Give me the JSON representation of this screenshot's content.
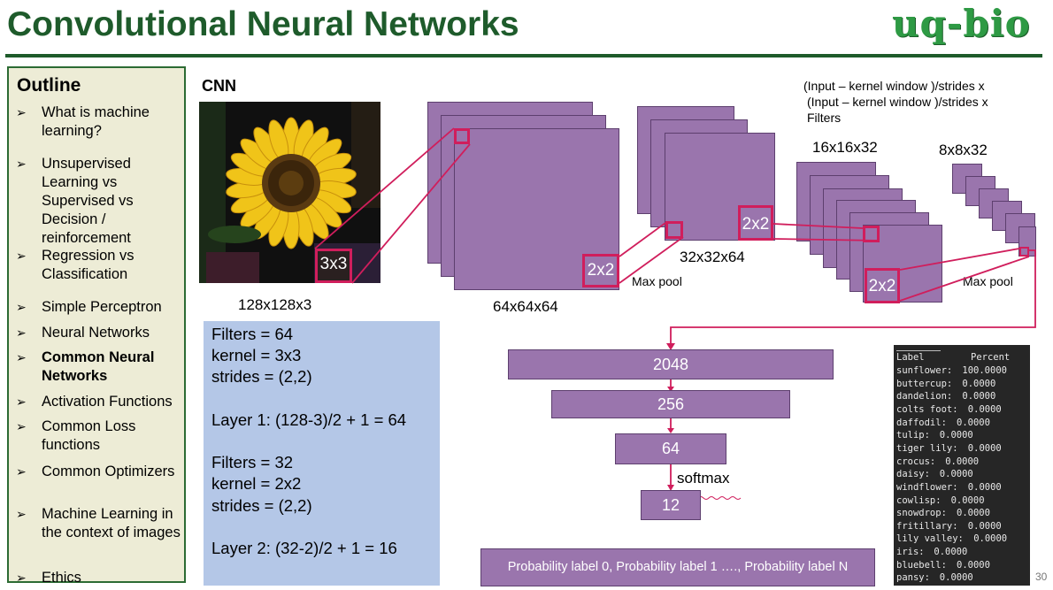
{
  "slide": {
    "title": "Convolutional Neural Networks",
    "logo_text": "uq-bio",
    "page_number": "30"
  },
  "outline": {
    "heading": "Outline",
    "items": [
      {
        "label": "What is machine learning?",
        "bold": false
      },
      {
        "label": "Unsupervised Learning vs Supervised vs Decision / reinforcement",
        "bold": false
      },
      {
        "label": "Regression vs Classification",
        "bold": false
      },
      {
        "label": "Simple Perceptron",
        "bold": false
      },
      {
        "label": "Neural Networks",
        "bold": false
      },
      {
        "label": "Common Neural Networks",
        "bold": true
      },
      {
        "label": "Activation Functions",
        "bold": false
      },
      {
        "label": "Common Loss functions",
        "bold": false
      },
      {
        "label": "Common Optimizers",
        "bold": false
      },
      {
        "label": "Machine Learning in the context of images",
        "bold": false
      },
      {
        "label": "Ethics",
        "bold": false
      }
    ]
  },
  "diagram": {
    "heading": "CNN",
    "formula_line1": "(Input – kernel window )/strides  x",
    "formula_line2": "(Input – kernel window )/strides x",
    "formula_line3": "Filters",
    "input_dims": "128x128x3",
    "kernel1": "3x3",
    "conv1_dims": "64x64x64",
    "pool1_kernel": "2x2",
    "pool1_label": "Max pool",
    "conv2_dims": "32x32x64",
    "conv2_kernel": "2x2",
    "conv3_dims": "16x16x32",
    "pool2_kernel": "2x2",
    "pool2_label": "Max pool",
    "conv4_dims": "8x8x32",
    "dense1": "2048",
    "dense2": "256",
    "dense3": "64",
    "activation": "softmax",
    "output": "12",
    "probabilities": "Probability label 0, Probability label 1 …., Probability label N"
  },
  "params": {
    "lines": [
      "Filters = 64",
      "kernel = 3x3",
      "strides =  (2,2)",
      "",
      "Layer 1: (128-3)/2 + 1 = 64",
      "",
      "Filters = 32",
      "kernel = 2x2",
      "strides =  (2,2)",
      "",
      "Layer 2: (32-2)/2 + 1 = 16"
    ]
  },
  "results": {
    "header_label": "Label",
    "header_percent": "Percent",
    "rows": [
      {
        "label": "sunflower:",
        "value": "100.0000"
      },
      {
        "label": "buttercup:",
        "value": "0.0000"
      },
      {
        "label": "dandelion:",
        "value": "0.0000"
      },
      {
        "label": "colts foot:",
        "value": "0.0000"
      },
      {
        "label": "daffodil:",
        "value": "0.0000"
      },
      {
        "label": "tulip:",
        "value": "0.0000"
      },
      {
        "label": "tiger lily:",
        "value": "0.0000"
      },
      {
        "label": "crocus:",
        "value": "0.0000"
      },
      {
        "label": "daisy:",
        "value": "0.0000"
      },
      {
        "label": "windflower:",
        "value": "0.0000"
      },
      {
        "label": "cowlisp:",
        "value": "0.0000"
      },
      {
        "label": "snowdrop:",
        "value": "0.0000"
      },
      {
        "label": "fritillary:",
        "value": "0.0000"
      },
      {
        "label": "lily valley:",
        "value": "0.0000"
      },
      {
        "label": "iris:",
        "value": "0.0000"
      },
      {
        "label": "bluebell:",
        "value": "0.0000"
      },
      {
        "label": "pansy:",
        "value": "0.0000"
      }
    ]
  },
  "colors": {
    "title_green": "#1e5b2b",
    "feature_map": "#9a75ad",
    "highlight": "#d01e5c",
    "params_bg": "#b4c7e7",
    "outline_bg": "#edecd6"
  }
}
